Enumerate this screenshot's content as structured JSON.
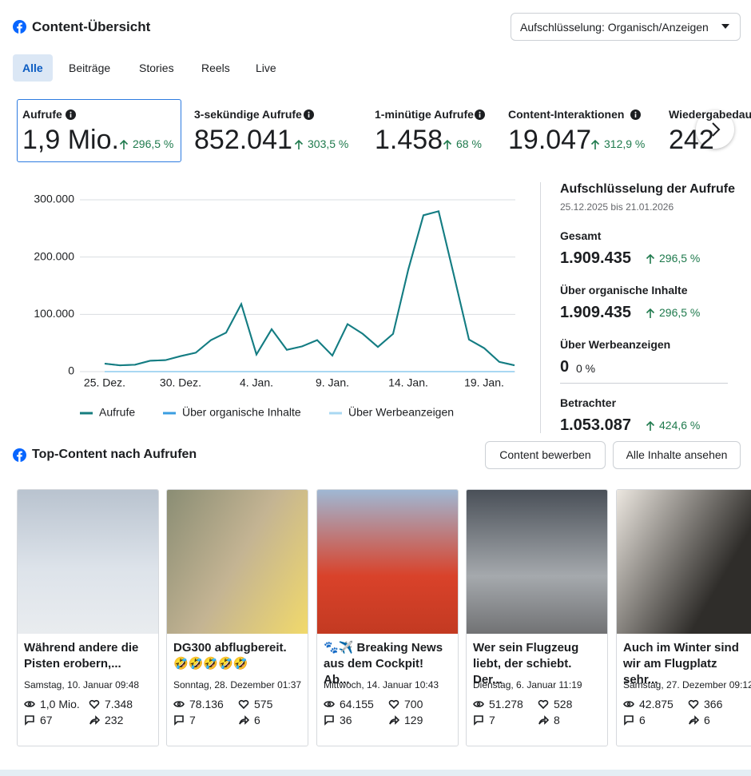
{
  "header": {
    "title": "Content-Übersicht",
    "dropdown": "Aufschlüsselung: Organisch/Anzeigen"
  },
  "tabs": [
    "Alle",
    "Beiträge",
    "Stories",
    "Reels",
    "Live"
  ],
  "metrics": [
    {
      "label": "Aufrufe",
      "value": "1,9 Mio.",
      "change": "296,5 %"
    },
    {
      "label": "3-sekündige Aufrufe",
      "value": "852.041",
      "change": "303,5 %"
    },
    {
      "label": "1-minütige Aufrufe",
      "value": "1.458",
      "change": "68 %"
    },
    {
      "label": "Content-Interaktionen",
      "value": "19.047",
      "change": "312,9 %"
    },
    {
      "label": "Wiedergabedauer",
      "value": "242"
    }
  ],
  "breakdown": {
    "title": "Aufschlüsselung der Aufrufe",
    "dates": "25.12.2025 bis 21.01.2026",
    "items": [
      {
        "label": "Gesamt",
        "value": "1.909.435",
        "change": "296,5 %"
      },
      {
        "label": "Über organische Inhalte",
        "value": "1.909.435",
        "change": "296,5 %"
      },
      {
        "label": "Über Werbeanzeigen",
        "value": "0",
        "change": "0 %"
      },
      {
        "label": "Betrachter",
        "value": "1.053.087",
        "change": "424,6 %"
      }
    ]
  },
  "chart_data": {
    "type": "line",
    "categories": [
      "25. Dez.",
      null,
      null,
      null,
      null,
      "30. Dez.",
      null,
      null,
      null,
      null,
      "4. Jan.",
      null,
      null,
      null,
      null,
      "9. Jan.",
      null,
      null,
      null,
      null,
      "14. Jan.",
      null,
      null,
      null,
      null,
      "19. Jan.",
      null,
      null
    ],
    "series": [
      {
        "name": "Aufrufe",
        "color": "#167d7f",
        "values": [
          14000,
          11000,
          12000,
          19000,
          20000,
          27000,
          33000,
          55000,
          68000,
          118000,
          30000,
          74000,
          38000,
          44000,
          55000,
          28000,
          83000,
          66000,
          43000,
          66000,
          178000,
          273000,
          280000,
          169000,
          56000,
          41000,
          17000,
          11000
        ]
      },
      {
        "name": "Über organische Inhalte",
        "color": "#3a9ee0",
        "values": [
          14000,
          11000,
          12000,
          19000,
          20000,
          27000,
          33000,
          55000,
          68000,
          118000,
          30000,
          74000,
          38000,
          44000,
          55000,
          28000,
          83000,
          66000,
          43000,
          66000,
          178000,
          273000,
          280000,
          169000,
          56000,
          41000,
          17000,
          11000
        ]
      },
      {
        "name": "Über Werbeanzeigen",
        "color": "#a9d8f2",
        "values": [
          0,
          0,
          0,
          0,
          0,
          0,
          0,
          0,
          0,
          0,
          0,
          0,
          0,
          0,
          0,
          0,
          0,
          0,
          0,
          0,
          0,
          0,
          0,
          0,
          0,
          0,
          0,
          0
        ]
      }
    ],
    "ylim": [
      0,
      300000
    ],
    "yticks": [
      0,
      {
        "value": 100000,
        "label": "100.000"
      },
      {
        "value": 200000,
        "label": "200.000"
      },
      {
        "value": 300000,
        "label": "300.000"
      }
    ],
    "grid": true
  },
  "top": {
    "title": "Top-Content nach Aufrufen",
    "buttons": [
      "Content bewerben",
      "Alle Inhalte ansehen"
    ],
    "posts": [
      {
        "text": "Während andere die Pisten erobern,...",
        "date": "Samstag, 10. Januar 09:48",
        "views": "1,0 Mio.",
        "likes": "7.348",
        "comments": "67",
        "shares": "232"
      },
      {
        "text": "DG300 abflugbereit. 🤣🤣🤣🤣🤣",
        "date": "Sonntag, 28. Dezember 01:37",
        "views": "78.136",
        "likes": "575",
        "comments": "7",
        "shares": "6"
      },
      {
        "text": "🐾✈️ Breaking News aus dem Cockpit! Ab...",
        "date": "Mittwoch, 14. Januar 10:43",
        "views": "64.155",
        "likes": "700",
        "comments": "36",
        "shares": "129"
      },
      {
        "text": "Wer sein Flugzeug liebt, der schiebt. Der...",
        "date": "Dienstag, 6. Januar 11:19",
        "views": "51.278",
        "likes": "528",
        "comments": "7",
        "shares": "8"
      },
      {
        "text": "Auch im Winter sind wir am Flugplatz sehr...",
        "date": "Samstag, 27. Dezember 09:12",
        "views": "42.875",
        "likes": "366",
        "comments": "6",
        "shares": "6"
      }
    ]
  }
}
